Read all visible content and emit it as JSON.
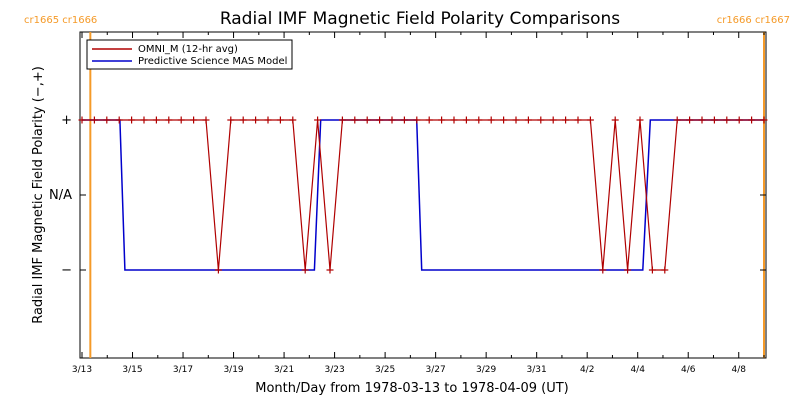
{
  "chart_data": {
    "type": "line",
    "title": "Radial IMF Magnetic Field Polarity Comparisons",
    "xlabel": "Month/Day from 1978-03-13 to 1978-04-09 (UT)",
    "ylabel": "Radial IMF Magnetic Field Polarity (−,+)",
    "x_ticks": [
      "3/13",
      "3/15",
      "3/17",
      "3/19",
      "3/21",
      "3/23",
      "3/25",
      "3/27",
      "3/29",
      "3/31",
      "4/2",
      "4/4",
      "4/6",
      "4/8"
    ],
    "y_ticks": [
      "+",
      "N/A",
      "−"
    ],
    "xlim_days": [
      0,
      27
    ],
    "ylim": [
      -2,
      2
    ],
    "grid": false,
    "legend_position": "top-left",
    "carrington_labels": {
      "left": "cr1665 cr1666",
      "right": "cr1666 cr1667"
    },
    "carrington_boundaries_days": [
      0.33,
      27.3
    ],
    "series": [
      {
        "name": "OMNI_M (12-hr avg)",
        "color": "#b00000",
        "marker": "+",
        "values": [
          1,
          1,
          1,
          1,
          1,
          1,
          1,
          1,
          1,
          1,
          1,
          -1,
          1,
          1,
          1,
          1,
          1,
          1,
          -1,
          1,
          -1,
          1,
          1,
          1,
          1,
          1,
          1,
          1,
          1,
          1,
          1,
          1,
          1,
          1,
          1,
          1,
          1,
          1,
          1,
          1,
          1,
          1,
          -1,
          1,
          -1,
          1,
          -1,
          -1,
          1,
          1,
          1,
          1,
          1,
          1,
          1,
          1
        ]
      },
      {
        "name": "Predictive Science MAS Model",
        "color": "#0000cc",
        "points": [
          [
            0,
            1
          ],
          [
            1.5,
            1
          ],
          [
            1.7,
            -1
          ],
          [
            9.2,
            -1
          ],
          [
            9.45,
            1
          ],
          [
            13.25,
            1
          ],
          [
            13.45,
            -1
          ],
          [
            22.2,
            -1
          ],
          [
            22.5,
            1
          ],
          [
            27,
            1
          ]
        ]
      }
    ]
  }
}
